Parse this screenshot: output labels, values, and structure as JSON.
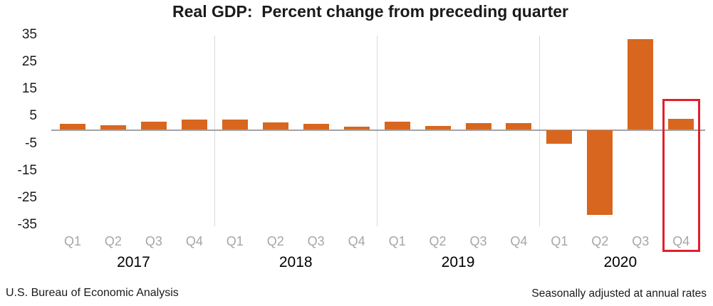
{
  "title": "Real GDP:  Percent change from preceding quarter",
  "footer": {
    "left": "U.S. Bureau of Economic Analysis",
    "right": "Seasonally adjusted at annual rates"
  },
  "chart_data": {
    "type": "bar",
    "title": "Real GDP:  Percent change from preceding quarter",
    "xlabel": "",
    "ylabel": "",
    "ylim": [
      -35,
      35
    ],
    "yticks": [
      35,
      25,
      15,
      5,
      -5,
      -15,
      -25,
      -35
    ],
    "grid": "year-separator-lines-only",
    "legend_position": "none",
    "groups": [
      {
        "year": "2017",
        "categories": [
          "Q1",
          "Q2",
          "Q3",
          "Q4"
        ],
        "values": [
          2.3,
          1.7,
          2.9,
          3.9
        ]
      },
      {
        "year": "2018",
        "categories": [
          "Q1",
          "Q2",
          "Q3",
          "Q4"
        ],
        "values": [
          3.8,
          2.7,
          2.1,
          1.3
        ]
      },
      {
        "year": "2019",
        "categories": [
          "Q1",
          "Q2",
          "Q3",
          "Q4"
        ],
        "values": [
          2.9,
          1.5,
          2.6,
          2.4
        ]
      },
      {
        "year": "2020",
        "categories": [
          "Q1",
          "Q2",
          "Q3",
          "Q4"
        ],
        "values": [
          -5.0,
          -31.4,
          33.4,
          4.1
        ]
      }
    ],
    "highlighted_bar": {
      "year": "2020",
      "quarter": "Q4"
    },
    "colors": {
      "bar": "#D8661F",
      "highlight_box": "#DF202E",
      "zero_line": "#A3A3A3",
      "separator_line": "#D9D9D9",
      "quarter_label": "#A6A6A6"
    }
  }
}
